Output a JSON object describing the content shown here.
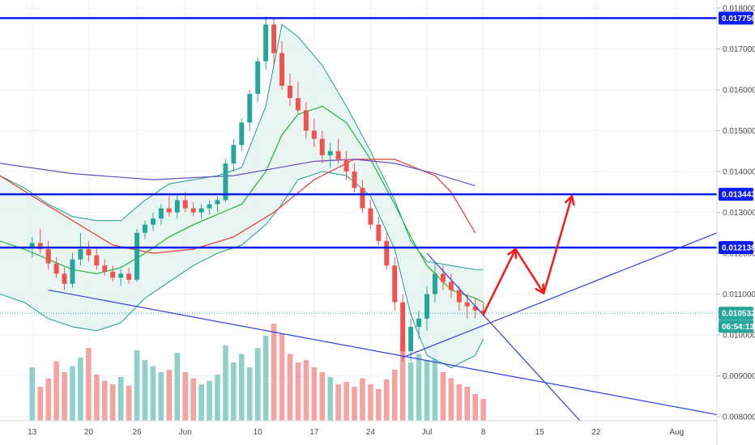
{
  "colors": {
    "up": "#26a69a",
    "down": "#ef5350",
    "vol_up": "#8fd1c9",
    "vol_down": "#f4a3a0",
    "level_line": "#0b1cf2",
    "trend_line": "#3040e0",
    "bb_band": "#1f9e8e",
    "bb_fill": "#e6f4f1",
    "ma_green": "#21b533",
    "ma_red": "#e53935",
    "ma_purple": "#6a4cc2",
    "projection": "#f21b1b",
    "grid": "#eef1f5",
    "axis_text": "#4a4a4a",
    "current_price": "#26a69a"
  },
  "chart_data": {
    "type": "candlestick",
    "x_axis": {
      "labels": [
        "13",
        "20",
        "26",
        "Jun",
        "10",
        "17",
        "24",
        "Jul",
        "8",
        "15",
        "22",
        "Aug"
      ],
      "label_day_index": [
        0,
        7,
        13,
        19,
        28,
        35,
        42,
        49,
        56,
        63,
        70,
        80
      ],
      "day_range": [
        -4,
        85
      ]
    },
    "y_axis": {
      "ticks": [
        "0.008000",
        "0.009000",
        "0.010000",
        "0.011000",
        "0.012000",
        "0.013000",
        "0.014000",
        "0.015000",
        "0.016000",
        "0.017000",
        "0.018000"
      ],
      "tick_values": [
        0.008,
        0.009,
        0.01,
        0.011,
        0.012,
        0.013,
        0.014,
        0.015,
        0.016,
        0.017,
        0.018
      ],
      "range": [
        0.0079,
        0.0182
      ]
    },
    "price_tags": [
      {
        "label": "0.017756",
        "value": 0.017756,
        "style": "level"
      },
      {
        "label": "0.013443",
        "value": 0.013443,
        "style": "level"
      },
      {
        "label": "0.012138",
        "value": 0.012138,
        "style": "level"
      },
      {
        "label": "0.010532",
        "value": 0.010532,
        "style": "price"
      },
      {
        "label": "06:54:13",
        "value": 0.010212,
        "style": "timer"
      }
    ],
    "horizontal_levels": [
      0.017756,
      0.013443,
      0.012138
    ],
    "current_price": 0.010532,
    "candles": [
      [
        0.01215,
        0.0124,
        0.0119,
        0.01225
      ],
      [
        0.01225,
        0.0126,
        0.012,
        0.0121
      ],
      [
        0.0121,
        0.0123,
        0.0116,
        0.01175
      ],
      [
        0.01175,
        0.0119,
        0.0114,
        0.0115
      ],
      [
        0.0115,
        0.01165,
        0.0111,
        0.01125
      ],
      [
        0.01125,
        0.012,
        0.01115,
        0.01185
      ],
      [
        0.01185,
        0.0125,
        0.0117,
        0.0121
      ],
      [
        0.0121,
        0.0123,
        0.0118,
        0.01195
      ],
      [
        0.01195,
        0.01215,
        0.0116,
        0.0117
      ],
      [
        0.0117,
        0.01185,
        0.01145,
        0.01155
      ],
      [
        0.01155,
        0.0117,
        0.0113,
        0.0114
      ],
      [
        0.0114,
        0.0116,
        0.0112,
        0.0115
      ],
      [
        0.0115,
        0.01165,
        0.01125,
        0.01135
      ],
      [
        0.01135,
        0.0126,
        0.0113,
        0.0125
      ],
      [
        0.0125,
        0.0128,
        0.01235,
        0.0127
      ],
      [
        0.0127,
        0.013,
        0.01255,
        0.01285
      ],
      [
        0.01285,
        0.0132,
        0.0127,
        0.0131
      ],
      [
        0.0131,
        0.0134,
        0.0129,
        0.013
      ],
      [
        0.013,
        0.01345,
        0.01285,
        0.0133
      ],
      [
        0.0133,
        0.0135,
        0.013,
        0.0131
      ],
      [
        0.0131,
        0.01325,
        0.0129,
        0.013
      ],
      [
        0.013,
        0.0132,
        0.01285,
        0.0131
      ],
      [
        0.0131,
        0.0133,
        0.01295,
        0.0132
      ],
      [
        0.0132,
        0.0134,
        0.013,
        0.0133
      ],
      [
        0.0133,
        0.0143,
        0.01325,
        0.0142
      ],
      [
        0.0142,
        0.0148,
        0.014,
        0.01465
      ],
      [
        0.01465,
        0.0153,
        0.0145,
        0.0152
      ],
      [
        0.0152,
        0.016,
        0.015,
        0.0159
      ],
      [
        0.0159,
        0.0168,
        0.0157,
        0.0167
      ],
      [
        0.0167,
        0.0178,
        0.0165,
        0.0176
      ],
      [
        0.0176,
        0.01775,
        0.0166,
        0.0169
      ],
      [
        0.0169,
        0.0172,
        0.016,
        0.0161
      ],
      [
        0.0161,
        0.0164,
        0.0156,
        0.0158
      ],
      [
        0.0158,
        0.0162,
        0.0154,
        0.0155
      ],
      [
        0.0155,
        0.0157,
        0.0148,
        0.015
      ],
      [
        0.015,
        0.0153,
        0.0146,
        0.0148
      ],
      [
        0.0148,
        0.015,
        0.0142,
        0.0144
      ],
      [
        0.0144,
        0.0147,
        0.0141,
        0.0145
      ],
      [
        0.0145,
        0.0148,
        0.0142,
        0.0143
      ],
      [
        0.0143,
        0.0145,
        0.0138,
        0.014
      ],
      [
        0.014,
        0.0142,
        0.0135,
        0.0136
      ],
      [
        0.0136,
        0.0138,
        0.013,
        0.0131
      ],
      [
        0.0131,
        0.0133,
        0.0126,
        0.0127
      ],
      [
        0.0127,
        0.0129,
        0.0122,
        0.0123
      ],
      [
        0.0123,
        0.0125,
        0.0116,
        0.0117
      ],
      [
        0.0117,
        0.0119,
        0.0106,
        0.0108
      ],
      [
        0.0108,
        0.011,
        0.00935,
        0.0096
      ],
      [
        0.0096,
        0.0104,
        0.00935,
        0.0102
      ],
      [
        0.0102,
        0.0106,
        0.0099,
        0.0104
      ],
      [
        0.0104,
        0.0112,
        0.0101,
        0.011
      ],
      [
        0.011,
        0.0118,
        0.0108,
        0.0115
      ],
      [
        0.0115,
        0.0117,
        0.0111,
        0.0113
      ],
      [
        0.0113,
        0.0115,
        0.0109,
        0.0111
      ],
      [
        0.0111,
        0.0112,
        0.0106,
        0.0108
      ],
      [
        0.0108,
        0.011,
        0.0104,
        0.0107
      ],
      [
        0.0107,
        0.0109,
        0.0104,
        0.0106
      ],
      [
        0.0106,
        0.0108,
        0.01045,
        0.01053
      ]
    ],
    "volume": [
      44,
      28,
      35,
      49,
      40,
      45,
      52,
      60,
      38,
      33,
      30,
      36,
      29,
      58,
      50,
      45,
      40,
      42,
      56,
      40,
      35,
      30,
      33,
      38,
      62,
      48,
      55,
      44,
      60,
      70,
      80,
      72,
      55,
      48,
      50,
      44,
      40,
      36,
      30,
      32,
      28,
      35,
      30,
      26,
      34,
      42,
      65,
      48,
      55,
      50,
      60,
      40,
      35,
      30,
      28,
      22,
      18
    ],
    "volume_max": 80,
    "bollinger": {
      "days": [
        -4,
        -1,
        2,
        5,
        8,
        11,
        14,
        17,
        20,
        23,
        26,
        29,
        31,
        33,
        36,
        39,
        42,
        45,
        47,
        49,
        52,
        55,
        56
      ],
      "upper": [
        0.0139,
        0.0136,
        0.0132,
        0.0129,
        0.0128,
        0.0128,
        0.0133,
        0.0137,
        0.0138,
        0.0139,
        0.0141,
        0.0156,
        0.0176,
        0.0173,
        0.0166,
        0.0156,
        0.0145,
        0.0133,
        0.0123,
        0.0118,
        0.0117,
        0.0116,
        0.0116
      ],
      "middle": [
        0.0123,
        0.0121,
        0.01185,
        0.0116,
        0.0115,
        0.01165,
        0.012,
        0.0124,
        0.0127,
        0.01295,
        0.0132,
        0.014,
        0.0149,
        0.0154,
        0.0156,
        0.0152,
        0.0143,
        0.0132,
        0.0124,
        0.0117,
        0.0111,
        0.0109,
        0.0108
      ],
      "lower": [
        0.011,
        0.0108,
        0.0104,
        0.0102,
        0.0101,
        0.0103,
        0.0109,
        0.0113,
        0.0117,
        0.012,
        0.0122,
        0.0127,
        0.0132,
        0.0138,
        0.014,
        0.0139,
        0.0134,
        0.0121,
        0.0105,
        0.0095,
        0.0092,
        0.0095,
        0.0099
      ]
    },
    "ma_red": {
      "days": [
        -4,
        0,
        5,
        10,
        15,
        20,
        25,
        30,
        35,
        40,
        45,
        50,
        52,
        55
      ],
      "values": [
        0.0139,
        0.0134,
        0.0128,
        0.0122,
        0.012,
        0.0121,
        0.0124,
        0.013,
        0.0138,
        0.0143,
        0.0143,
        0.0139,
        0.0135,
        0.0125
      ]
    },
    "ma_purple": {
      "days": [
        -4,
        5,
        15,
        25,
        35,
        40,
        45,
        50,
        55
      ],
      "values": [
        0.0142,
        0.01395,
        0.0138,
        0.0139,
        0.01425,
        0.0143,
        0.0142,
        0.01395,
        0.01365
      ]
    },
    "trend_lines": [
      {
        "from": [
          2,
          0.0111
        ],
        "to": [
          85,
          0.00805
        ]
      },
      {
        "from": [
          46,
          0.00945
        ],
        "to": [
          85,
          0.0125
        ]
      },
      {
        "from": [
          49,
          0.012
        ],
        "to": [
          68,
          0.0079
        ]
      }
    ],
    "projection_path": [
      [
        56,
        0.0105
      ],
      [
        60,
        0.0121
      ],
      [
        63.5,
        0.01102
      ],
      [
        67,
        0.0134
      ]
    ]
  }
}
